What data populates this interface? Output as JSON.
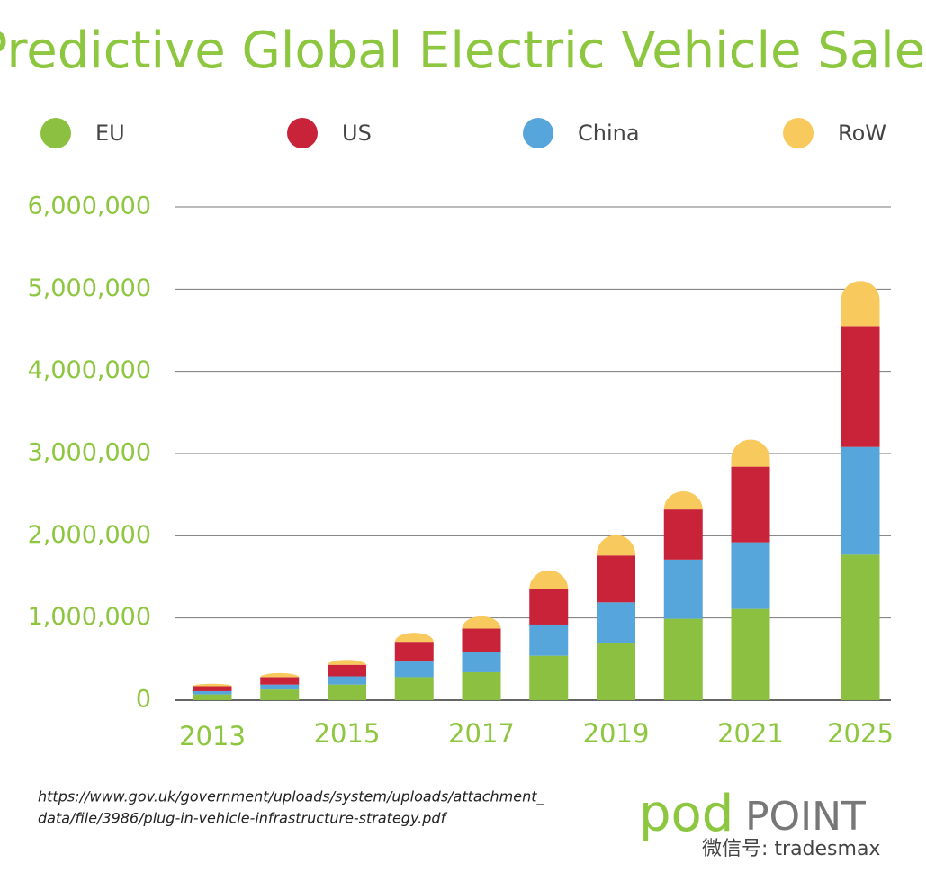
{
  "chart_data": {
    "type": "stacked_bar",
    "title": "Predictive Global Electric Vehicle Sales",
    "categories": [
      "2013",
      null,
      "2015",
      null,
      "2017",
      null,
      "2019",
      null,
      "2021",
      "2025"
    ],
    "series": [
      {
        "name": "EU",
        "color": "#8cc040",
        "values": [
          70000,
          130000,
          190000,
          280000,
          340000,
          540000,
          690000,
          990000,
          1110000,
          1770000
        ]
      },
      {
        "name": "China",
        "color": "#56a6dc",
        "values": [
          40000,
          60000,
          100000,
          190000,
          250000,
          380000,
          500000,
          720000,
          810000,
          1310000
        ]
      },
      {
        "name": "US",
        "color": "#c9233a",
        "values": [
          60000,
          90000,
          140000,
          240000,
          280000,
          430000,
          570000,
          610000,
          920000,
          1470000
        ]
      },
      {
        "name": "RoW",
        "color": "#f8c95c",
        "values": [
          30000,
          50000,
          60000,
          110000,
          150000,
          230000,
          250000,
          220000,
          330000,
          550000
        ]
      }
    ],
    "legend_order": [
      "EU",
      "US",
      "China",
      "RoW"
    ],
    "ylim": [
      0,
      6000000
    ],
    "yticks": [
      0,
      {
        "value": 1000000,
        "label": "1,000,000"
      },
      {
        "value": 2000000,
        "label": "2,000,000"
      },
      {
        "value": 3000000,
        "label": "3,000,000"
      },
      {
        "value": 4000000,
        "label": "4,000,000"
      },
      {
        "value": 5000000,
        "label": "5,000,000"
      },
      {
        "value": 6000000,
        "label": "6,000,000"
      }
    ],
    "grid": true,
    "source": [
      "https://www.gov.uk/government/uploads/system/uploads/attachment_",
      "data/file/3986/plug-in-vehicle-infrastructure-strategy.pdf"
    ],
    "logo": {
      "pod": "pod",
      "point": "POINT"
    },
    "watermark": "微信号: tradesmax"
  }
}
